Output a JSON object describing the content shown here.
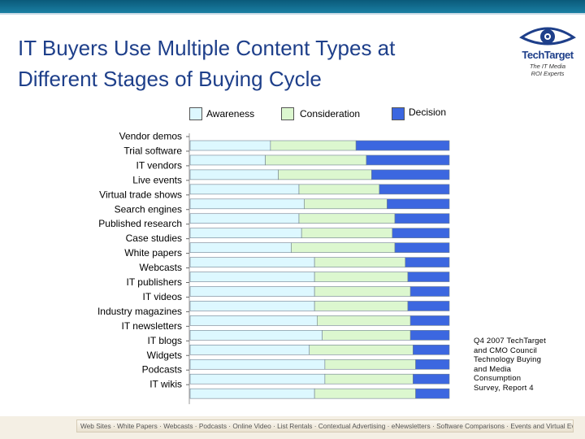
{
  "title_line1": "IT Buyers Use Multiple Content Types at",
  "title_line2": "Different Stages of Buying Cycle",
  "logo": {
    "name": "TechTarget",
    "tagline1": "The IT Media",
    "tagline2": "ROI Experts"
  },
  "colors": {
    "awareness": "#ddf8ff",
    "consideration": "#dcf7cf",
    "decision": "#3c67e0",
    "title": "#1e3f8a"
  },
  "source_lines": [
    "Q4 2007 TechTarget",
    "and CMO Council",
    "Technology Buying",
    "and Media",
    "Consumption",
    "Survey, Report 4"
  ],
  "footer_text": "Web Sites · White Papers · Webcasts · Podcasts · Online Video · List Rentals · Contextual Advertising · eNewsletters · Software Comparisons · Events and Virtual Events · Print",
  "chart_data": {
    "type": "bar",
    "orientation": "horizontal",
    "stacked": true,
    "xlim": [
      0,
      100
    ],
    "legend_position": "top",
    "categories": [
      "Vendor demos",
      "Trial software",
      "IT vendors",
      "Live events",
      "Virtual trade shows",
      "Search engines",
      "Published research",
      "Case studies",
      "White papers",
      "Webcasts",
      "IT publishers",
      "IT videos",
      "Industry magazines",
      "IT newsletters",
      "IT blogs",
      "Widgets",
      "Podcasts",
      "IT wikis"
    ],
    "series": [
      {
        "name": "Awareness",
        "values": [
          31,
          29,
          34,
          42,
          44,
          42,
          43,
          39,
          48,
          48,
          48,
          48,
          49,
          51,
          46,
          52,
          52,
          48
        ]
      },
      {
        "name": "Consideration",
        "values": [
          33,
          39,
          36,
          31,
          32,
          37,
          35,
          40,
          35,
          36,
          37,
          36,
          36,
          34,
          40,
          35,
          34,
          39
        ]
      },
      {
        "name": "Decision",
        "values": [
          36,
          32,
          30,
          27,
          24,
          21,
          22,
          21,
          17,
          16,
          15,
          16,
          15,
          15,
          14,
          13,
          14,
          13
        ]
      }
    ]
  }
}
